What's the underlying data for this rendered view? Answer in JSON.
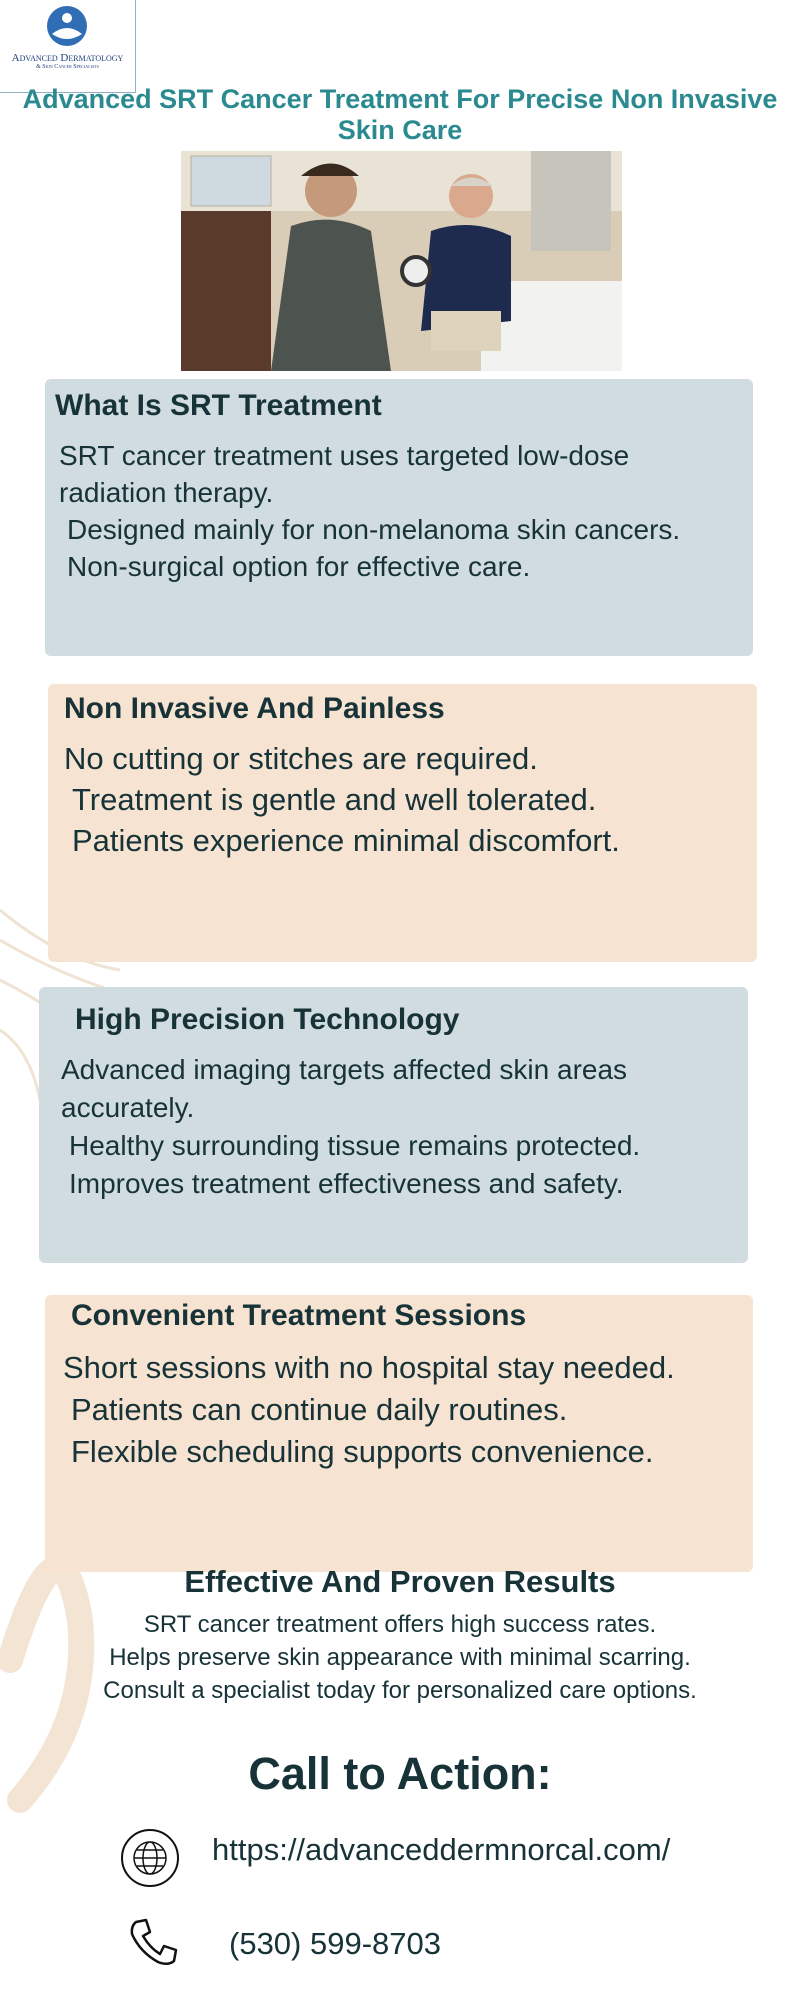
{
  "header": {
    "logo_line1": "Advanced Dermatology",
    "logo_line2": "& Skin Cancer Specialists",
    "title": "Advanced SRT Cancer Treatment For Precise Non Invasive Skin Care"
  },
  "sections": [
    {
      "heading": "What Is SRT Treatment",
      "lines": [
        "SRT cancer treatment uses targeted low-dose radiation therapy.",
        "Designed mainly for non-melanoma skin cancers.",
        "Non-surgical option for effective care."
      ]
    },
    {
      "heading": "Non Invasive And Painless",
      "lines": [
        "No cutting or stitches are required.",
        "Treatment is gentle and well tolerated.",
        "Patients experience minimal discomfort."
      ]
    },
    {
      "heading": "High Precision Technology",
      "lines": [
        "Advanced imaging targets affected skin areas accurately.",
        "Healthy surrounding tissue remains protected.",
        "Improves treatment effectiveness and safety."
      ]
    },
    {
      "heading": "Convenient Treatment Sessions",
      "lines": [
        "Short sessions with no hospital stay needed.",
        "Patients can continue daily routines.",
        "Flexible scheduling supports convenience."
      ]
    }
  ],
  "results": {
    "heading": "Effective And Proven Results",
    "lines": [
      "SRT cancer treatment offers high success rates.",
      "Helps preserve skin appearance with minimal scarring.",
      "Consult a specialist today for personalized care options."
    ]
  },
  "cta": {
    "heading": "Call to Action:",
    "url": "https://advanceddermnorcal.com/",
    "phone": "(530) 599-8703"
  }
}
